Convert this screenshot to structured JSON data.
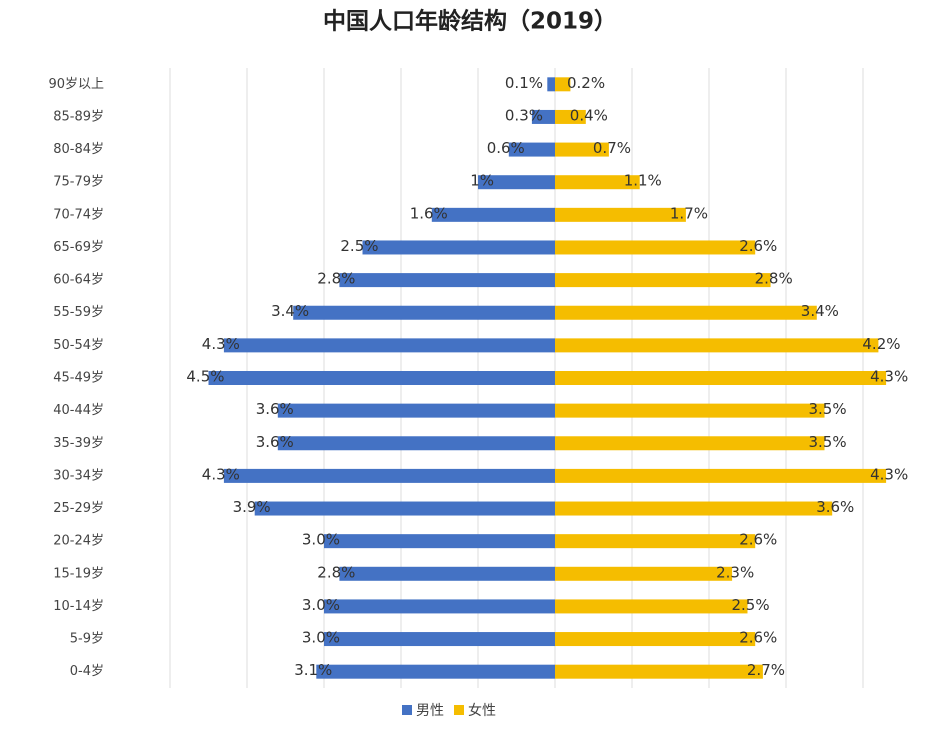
{
  "chart_data": {
    "type": "pyramid",
    "title": "中国人口年龄结构（2019）",
    "categories": [
      "90岁以上",
      "85-89岁",
      "80-84岁",
      "75-79岁",
      "70-74岁",
      "65-69岁",
      "60-64岁",
      "55-59岁",
      "50-54岁",
      "45-49岁",
      "40-44岁",
      "35-39岁",
      "30-34岁",
      "25-29岁",
      "20-24岁",
      "15-19岁",
      "10-14岁",
      "5-9岁",
      "0-4岁"
    ],
    "series": [
      {
        "name": "男性",
        "color": "#4472c4",
        "side": "left",
        "values": [
          0.1,
          0.3,
          0.6,
          1,
          1.6,
          2.5,
          2.8,
          3.4,
          4.3,
          4.5,
          3.6,
          3.6,
          4.3,
          3.9,
          3.0,
          2.8,
          3.0,
          3.0,
          3.1
        ],
        "value_labels": [
          "0.1%",
          "0.3%",
          "0.6%",
          "1%",
          "1.6%",
          "2.5%",
          "2.8%",
          "3.4%",
          "4.3%",
          "4.5%",
          "3.6%",
          "3.6%",
          "4.3%",
          "3.9%",
          "3.0%",
          "2.8%",
          "3.0%",
          "3.0%",
          "3.1%"
        ]
      },
      {
        "name": "女性",
        "color": "#f5bd00",
        "side": "right",
        "values": [
          0.2,
          0.4,
          0.7,
          1.1,
          1.7,
          2.6,
          2.8,
          3.4,
          4.2,
          4.3,
          3.5,
          3.5,
          4.3,
          3.6,
          2.6,
          2.3,
          2.5,
          2.6,
          2.7
        ],
        "value_labels": [
          "0.2%",
          "0.4%",
          "0.7%",
          "1.1%",
          "1.7%",
          "2.6%",
          "2.8%",
          "3.4%",
          "4.2%",
          "4.3%",
          "3.5%",
          "3.5%",
          "4.3%",
          "3.6%",
          "2.6%",
          "2.3%",
          "2.5%",
          "2.6%",
          "2.7%"
        ]
      }
    ],
    "xlim": [
      -5,
      5
    ],
    "xticks": [
      -5,
      -4,
      -3,
      -2,
      -1,
      0,
      1,
      2,
      3,
      4
    ],
    "grid": true
  }
}
